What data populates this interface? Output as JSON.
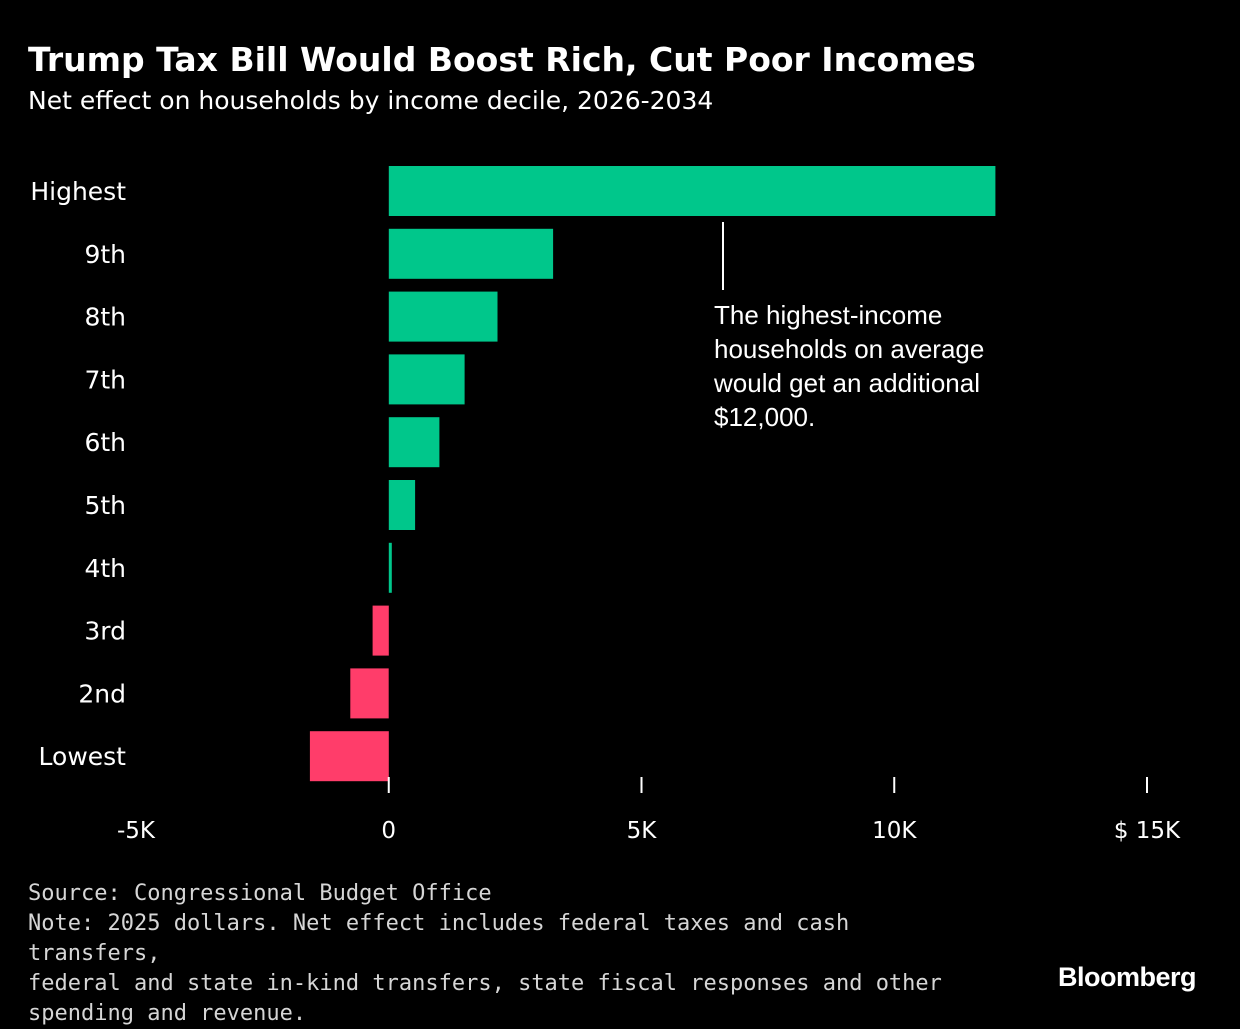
{
  "chart_data": {
    "type": "bar",
    "orientation": "horizontal",
    "title": "Trump Tax Bill Would Boost Rich, Cut Poor Incomes",
    "subtitle": "Net effect on households by income decile, 2026-2034",
    "categories": [
      "Highest",
      "9th",
      "8th",
      "7th",
      "6th",
      "5th",
      "4th",
      "3rd",
      "2nd",
      "Lowest"
    ],
    "values": [
      12000,
      3250,
      2150,
      1500,
      1000,
      520,
      60,
      -320,
      -760,
      -1560
    ],
    "xlim": [
      -5000,
      15000
    ],
    "xticks": [
      -5000,
      0,
      5000,
      10000,
      15000
    ],
    "xtick_labels": [
      "-5K",
      "0",
      "5K",
      "10K",
      "$ 15K"
    ],
    "positive_color": "#00c78b",
    "negative_color": "#ff3d6a",
    "annotation": {
      "lines": [
        "The highest-income",
        "households on average",
        "would get an additional",
        "$12,000."
      ],
      "target_category": "Highest"
    }
  },
  "footer": {
    "source": "Source: Congressional Budget Office",
    "note_lines": [
      "Note: 2025 dollars. Net effect includes federal taxes and cash transfers,",
      "federal and state in-kind transfers, state fiscal responses and other",
      "spending and revenue."
    ]
  },
  "brand": "Bloomberg"
}
